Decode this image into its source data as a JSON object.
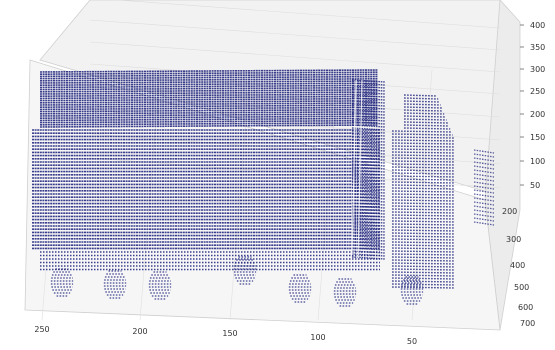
{
  "chart_data": {
    "type": "scatter",
    "projection": "3d",
    "title": "",
    "xlabel": "",
    "ylabel": "",
    "zlabel": "",
    "grid": true,
    "marker_color": "#1a1f7a",
    "x_ticks": [
      "250",
      "200",
      "150",
      "100",
      "50"
    ],
    "y_ticks": [
      "200",
      "300",
      "400",
      "500",
      "600",
      "700"
    ],
    "z_ticks": [
      "50",
      "100",
      "150",
      "200",
      "250",
      "300",
      "350",
      "400"
    ],
    "xlim": [
      30,
      270
    ],
    "ylim": [
      180,
      720
    ],
    "zlim": [
      0,
      410
    ],
    "point_cloud_object": "truck (lidar scan)",
    "features": [
      {
        "name": "cargo box",
        "x_range": [
          70,
          260
        ],
        "z_range": [
          50,
          300
        ]
      },
      {
        "name": "cab",
        "x_range": [
          30,
          70
        ],
        "z_range": [
          20,
          260
        ]
      },
      {
        "name": "wheels",
        "count": 7,
        "z_range": [
          0,
          50
        ]
      }
    ]
  }
}
